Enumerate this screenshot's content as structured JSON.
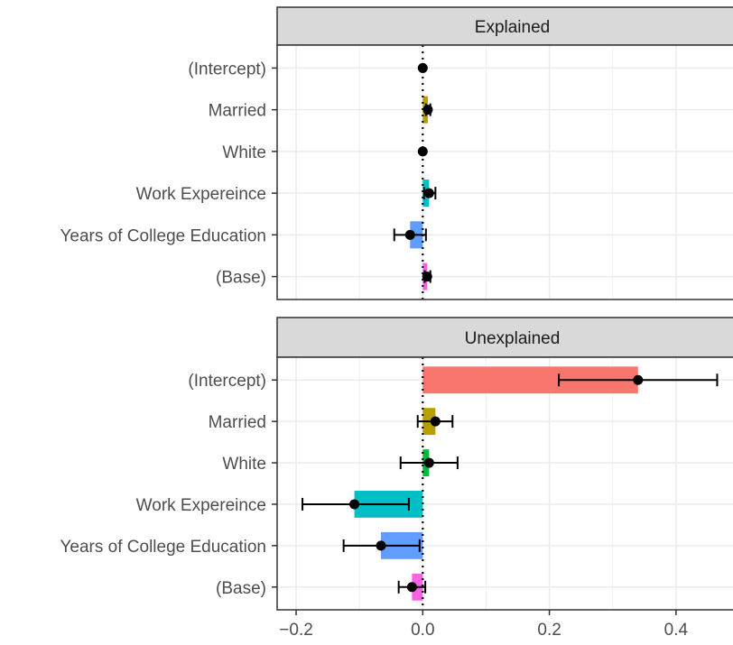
{
  "chart_data": {
    "type": "bar",
    "facet_layout": "vertical",
    "categories": [
      "(Intercept)",
      "Married",
      "White",
      "Work Expereince",
      "Years of College Education",
      "(Base)"
    ],
    "xlim": [
      -0.23,
      0.49
    ],
    "x_ticks": [
      -0.2,
      0.0,
      0.2,
      0.4
    ],
    "x_tick_labels": [
      "−0.2",
      "0.0",
      "0.2",
      "0.4"
    ],
    "grid": true,
    "reference_line": {
      "x": 0,
      "style": "dotted"
    },
    "bar_colors": {
      "(Intercept)": "#F8766D",
      "Married": "#B79F00",
      "White": "#00BA38",
      "Work Expereince": "#00BFC4",
      "Years of College Education": "#619CFF",
      "(Base)": "#F564E3"
    },
    "panels": [
      {
        "title": "Explained",
        "values": [
          0.0,
          0.008,
          0.0,
          0.01,
          -0.02,
          0.007
        ],
        "ci_low": [
          null,
          0.005,
          null,
          0.002,
          -0.045,
          0.003
        ],
        "ci_high": [
          null,
          0.012,
          null,
          0.02,
          0.005,
          0.012
        ]
      },
      {
        "title": "Unexplained",
        "values": [
          0.34,
          0.02,
          0.01,
          -0.108,
          -0.066,
          -0.017
        ],
        "ci_low": [
          0.215,
          -0.008,
          -0.035,
          -0.19,
          -0.125,
          -0.038
        ],
        "ci_high": [
          0.465,
          0.047,
          0.055,
          -0.022,
          -0.005,
          0.004
        ]
      }
    ]
  }
}
